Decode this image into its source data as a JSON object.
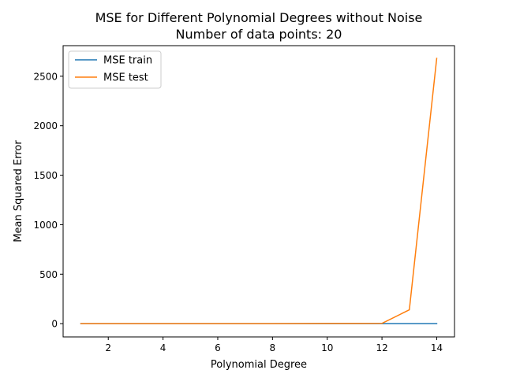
{
  "chart_data": {
    "type": "line",
    "title": "MSE for Different Polynomial Degrees without Noise",
    "subtitle": "Number of data points: 20",
    "xlabel": "Polynomial Degree",
    "ylabel": "Mean Squared Error",
    "x": [
      1,
      2,
      3,
      4,
      5,
      6,
      7,
      8,
      9,
      10,
      11,
      12,
      13,
      14
    ],
    "xlim": [
      0.35,
      14.65
    ],
    "ylim": [
      -134,
      2809
    ],
    "xticks": [
      2,
      4,
      6,
      8,
      10,
      12,
      14
    ],
    "yticks": [
      0,
      500,
      1000,
      1500,
      2000,
      2500
    ],
    "grid": false,
    "legend_position": "top-left",
    "series": [
      {
        "name": "MSE train",
        "color": "#1f77b4",
        "values": [
          0,
          0,
          0,
          0,
          0,
          0,
          0,
          0,
          0,
          0,
          0,
          0,
          0,
          0
        ]
      },
      {
        "name": "MSE test",
        "color": "#ff7f0e",
        "values": [
          0,
          0,
          0,
          0,
          0,
          0,
          0,
          0,
          1,
          2,
          2,
          3,
          140,
          2680
        ]
      }
    ]
  }
}
